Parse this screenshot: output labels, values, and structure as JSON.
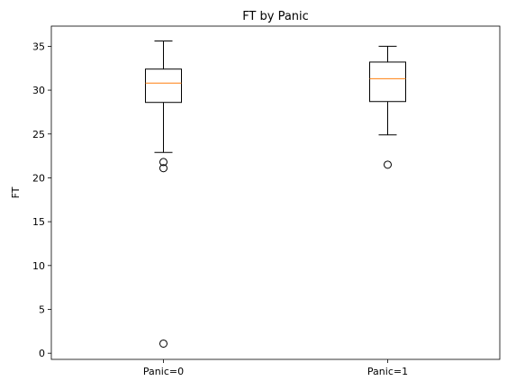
{
  "chart_data": {
    "type": "box",
    "title": "FT by Panic",
    "xlabel": "",
    "ylabel": "FT",
    "ylim": [
      -0.7,
      37.3
    ],
    "yticks": [
      0,
      5,
      10,
      15,
      20,
      25,
      30,
      35
    ],
    "categories": [
      "Panic=0",
      "Panic=1"
    ],
    "boxes": [
      {
        "whisker_low": 22.9,
        "q1": 28.6,
        "median": 30.8,
        "q3": 32.4,
        "whisker_high": 35.6,
        "outliers": [
          21.8,
          21.1,
          1.1
        ]
      },
      {
        "whisker_low": 24.9,
        "q1": 28.7,
        "median": 31.3,
        "q3": 33.2,
        "whisker_high": 35.0,
        "outliers": [
          21.5
        ]
      }
    ],
    "colors": {
      "box": "#000000",
      "median": "#ff7f0e"
    },
    "grid": false,
    "legend": "none"
  }
}
